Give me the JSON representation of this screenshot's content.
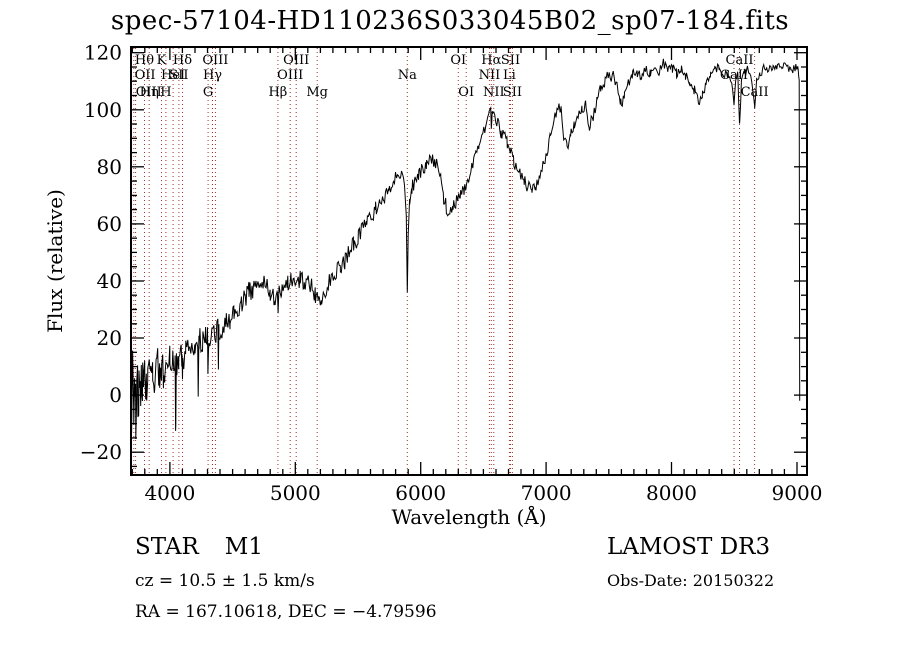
{
  "title": "spec-57104-HD110236S033045B02_sp07-184.fits",
  "annotations": {
    "class_label": "STAR",
    "subclass_label": "M1",
    "cz_text": "cz = 10.5 ± 1.5 km/s",
    "radec_text": "RA = 167.10618, DEC =  −4.79596",
    "survey_text": "LAMOST DR3",
    "obsdate_text": "Obs-Date: 20150322"
  },
  "chart_data": {
    "type": "line",
    "title": "spec-57104-HD110236S033045B02_sp07-184.fits",
    "xlabel": "Wavelength (Å)",
    "ylabel": "Flux (relative)",
    "xlim": [
      3690,
      9080
    ],
    "ylim": [
      -28,
      122
    ],
    "x_major_ticks": [
      4000,
      5000,
      6000,
      7000,
      8000,
      9000
    ],
    "x_minor_step": 100,
    "y_major_ticks": [
      -20,
      0,
      20,
      40,
      60,
      80,
      100,
      120
    ],
    "y_minor_step": 5,
    "grid": false,
    "background_color": "#ffffff",
    "spectrum_color": "#000000",
    "frame_color": "#000000",
    "marker_line_color": "#a03228",
    "marker_label_color": "#000000",
    "series": [
      {
        "name": "spectrum",
        "sample_step_angstrom": 8,
        "noise_seed": 987654321,
        "anchors": [
          [
            3695,
            -2
          ],
          [
            3703,
            6
          ],
          [
            3712,
            -8
          ],
          [
            3720,
            3
          ],
          [
            3728,
            -4
          ],
          [
            3736,
            6
          ],
          [
            3745,
            -2
          ],
          [
            3754,
            4
          ],
          [
            3763,
            -1
          ],
          [
            3772,
            6
          ],
          [
            3781,
            2
          ],
          [
            3790,
            1
          ],
          [
            3800,
            5
          ],
          [
            3812,
            3
          ],
          [
            3824,
            7
          ],
          [
            3835,
            4
          ],
          [
            3848,
            8
          ],
          [
            3862,
            5
          ],
          [
            3876,
            8
          ],
          [
            3890,
            6
          ],
          [
            3904,
            9
          ],
          [
            3918,
            7
          ],
          [
            3933,
            5
          ],
          [
            3948,
            9
          ],
          [
            3960,
            7
          ],
          [
            3968,
            6
          ],
          [
            3980,
            10
          ],
          [
            4000,
            11
          ],
          [
            4020,
            12
          ],
          [
            4042,
            13
          ],
          [
            4046,
            -12
          ],
          [
            4052,
            12
          ],
          [
            4070,
            12
          ],
          [
            4090,
            14
          ],
          [
            4097,
            14
          ],
          [
            4101,
            7
          ],
          [
            4107,
            14
          ],
          [
            4125,
            15
          ],
          [
            4150,
            16
          ],
          [
            4175,
            17
          ],
          [
            4200,
            18
          ],
          [
            4222,
            19
          ],
          [
            4226,
            3
          ],
          [
            4232,
            19
          ],
          [
            4260,
            19
          ],
          [
            4285,
            20
          ],
          [
            4300,
            20
          ],
          [
            4303,
            9
          ],
          [
            4308,
            20
          ],
          [
            4330,
            21
          ],
          [
            4355,
            22
          ],
          [
            4384,
            23
          ],
          [
            4387,
            12
          ],
          [
            4392,
            23
          ],
          [
            4420,
            24
          ],
          [
            4450,
            26
          ],
          [
            4480,
            27
          ],
          [
            4510,
            28
          ],
          [
            4540,
            30
          ],
          [
            4570,
            32
          ],
          [
            4600,
            34
          ],
          [
            4630,
            36
          ],
          [
            4660,
            37
          ],
          [
            4690,
            38
          ],
          [
            4720,
            39
          ],
          [
            4750,
            39
          ],
          [
            4775,
            38
          ],
          [
            4800,
            36
          ],
          [
            4830,
            34
          ],
          [
            4857,
            35
          ],
          [
            4861,
            30
          ],
          [
            4868,
            35
          ],
          [
            4890,
            36
          ],
          [
            4915,
            37
          ],
          [
            4940,
            39
          ],
          [
            4965,
            40
          ],
          [
            4990,
            40
          ],
          [
            5015,
            40
          ],
          [
            5040,
            41
          ],
          [
            5070,
            40
          ],
          [
            5100,
            39
          ],
          [
            5130,
            38
          ],
          [
            5160,
            35
          ],
          [
            5185,
            34
          ],
          [
            5210,
            34
          ],
          [
            5240,
            37
          ],
          [
            5270,
            40
          ],
          [
            5300,
            42
          ],
          [
            5330,
            44
          ],
          [
            5360,
            45
          ],
          [
            5395,
            47
          ],
          [
            5430,
            50
          ],
          [
            5465,
            53
          ],
          [
            5500,
            55
          ],
          [
            5535,
            58
          ],
          [
            5570,
            61
          ],
          [
            5605,
            63
          ],
          [
            5640,
            65
          ],
          [
            5675,
            67
          ],
          [
            5710,
            69
          ],
          [
            5745,
            72
          ],
          [
            5780,
            75
          ],
          [
            5815,
            77
          ],
          [
            5845,
            77
          ],
          [
            5868,
            75
          ],
          [
            5885,
            63
          ],
          [
            5893,
            36
          ],
          [
            5900,
            57
          ],
          [
            5912,
            69
          ],
          [
            5930,
            73
          ],
          [
            5955,
            75
          ],
          [
            5985,
            77
          ],
          [
            6015,
            79
          ],
          [
            6045,
            80
          ],
          [
            6075,
            82
          ],
          [
            6105,
            82
          ],
          [
            6135,
            80
          ],
          [
            6160,
            76
          ],
          [
            6180,
            70
          ],
          [
            6205,
            66
          ],
          [
            6230,
            64
          ],
          [
            6258,
            66
          ],
          [
            6285,
            68
          ],
          [
            6315,
            70
          ],
          [
            6345,
            72
          ],
          [
            6375,
            75
          ],
          [
            6405,
            79
          ],
          [
            6435,
            83
          ],
          [
            6465,
            87
          ],
          [
            6495,
            91
          ],
          [
            6520,
            95
          ],
          [
            6545,
            98
          ],
          [
            6558,
            99
          ],
          [
            6563,
            94
          ],
          [
            6570,
            98
          ],
          [
            6590,
            97
          ],
          [
            6615,
            95
          ],
          [
            6640,
            92
          ],
          [
            6665,
            91
          ],
          [
            6690,
            88
          ],
          [
            6715,
            85
          ],
          [
            6740,
            82
          ],
          [
            6765,
            80
          ],
          [
            6795,
            77
          ],
          [
            6825,
            75
          ],
          [
            6855,
            73
          ],
          [
            6885,
            72
          ],
          [
            6915,
            73
          ],
          [
            6945,
            76
          ],
          [
            6975,
            80
          ],
          [
            7005,
            85
          ],
          [
            7035,
            91
          ],
          [
            7065,
            97
          ],
          [
            7095,
            101
          ],
          [
            7115,
            101
          ],
          [
            7140,
            89
          ],
          [
            7165,
            87
          ],
          [
            7195,
            91
          ],
          [
            7225,
            95
          ],
          [
            7255,
            98
          ],
          [
            7285,
            100
          ],
          [
            7315,
            102
          ],
          [
            7345,
            95
          ],
          [
            7375,
            98
          ],
          [
            7405,
            103
          ],
          [
            7435,
            107
          ],
          [
            7465,
            110
          ],
          [
            7500,
            112
          ],
          [
            7535,
            112
          ],
          [
            7565,
            108
          ],
          [
            7595,
            102
          ],
          [
            7625,
            105
          ],
          [
            7655,
            109
          ],
          [
            7690,
            112
          ],
          [
            7725,
            113
          ],
          [
            7760,
            112
          ],
          [
            7795,
            114
          ],
          [
            7830,
            113
          ],
          [
            7865,
            115
          ],
          [
            7900,
            114
          ],
          [
            7935,
            116
          ],
          [
            7970,
            114
          ],
          [
            8005,
            115
          ],
          [
            8040,
            113
          ],
          [
            8075,
            114
          ],
          [
            8110,
            112
          ],
          [
            8145,
            110
          ],
          [
            8180,
            107
          ],
          [
            8215,
            103
          ],
          [
            8245,
            105
          ],
          [
            8275,
            109
          ],
          [
            8310,
            112
          ],
          [
            8345,
            114
          ],
          [
            8380,
            115
          ],
          [
            8415,
            113
          ],
          [
            8450,
            112
          ],
          [
            8480,
            110
          ],
          [
            8498,
            102
          ],
          [
            8512,
            111
          ],
          [
            8528,
            112
          ],
          [
            8542,
            95
          ],
          [
            8558,
            111
          ],
          [
            8580,
            113
          ],
          [
            8605,
            114
          ],
          [
            8635,
            111
          ],
          [
            8662,
            100
          ],
          [
            8680,
            111
          ],
          [
            8705,
            113
          ],
          [
            8740,
            115
          ],
          [
            8775,
            114
          ],
          [
            8810,
            115
          ],
          [
            8845,
            116
          ],
          [
            8880,
            115
          ],
          [
            8915,
            116
          ],
          [
            8950,
            114
          ],
          [
            8985,
            115
          ],
          [
            9010,
            114
          ],
          [
            9018,
            110
          ],
          [
            9022,
            -2
          ]
        ],
        "noise_anchors": [
          [
            3695,
            13
          ],
          [
            3760,
            12
          ],
          [
            3830,
            10
          ],
          [
            3900,
            8
          ],
          [
            3970,
            7
          ],
          [
            4050,
            6
          ],
          [
            4150,
            5
          ],
          [
            4300,
            4.5
          ],
          [
            4500,
            4
          ],
          [
            4700,
            3.5
          ],
          [
            4900,
            3.2
          ],
          [
            5100,
            3
          ],
          [
            5400,
            3
          ],
          [
            5700,
            2.8
          ],
          [
            5880,
            1.5
          ],
          [
            5910,
            2.5
          ],
          [
            6100,
            2.6
          ],
          [
            6400,
            2.4
          ],
          [
            6540,
            1.6
          ],
          [
            6600,
            2.2
          ],
          [
            7000,
            2.2
          ],
          [
            7300,
            2.4
          ],
          [
            7600,
            2
          ],
          [
            8000,
            2
          ],
          [
            8200,
            1.8
          ],
          [
            8530,
            1.2
          ],
          [
            8700,
            1.8
          ],
          [
            9000,
            1.6
          ],
          [
            9022,
            0.4
          ]
        ]
      }
    ],
    "spectral_lines": [
      {
        "label": "OIII",
        "wavelength": 3712,
        "row": 3
      },
      {
        "label": "OII",
        "wavelength": 3727,
        "row": 2
      },
      {
        "label": "Hθ",
        "wavelength": 3798,
        "row": 1
      },
      {
        "label": "Hη",
        "wavelength": 3835,
        "row": 3
      },
      {
        "label": "K",
        "wavelength": 3933,
        "row": 1
      },
      {
        "label": "H",
        "wavelength": 3968,
        "row": 3
      },
      {
        "label": "HeI",
        "wavelength": 4026,
        "row": 2
      },
      {
        "label": "SII",
        "wavelength": 4072,
        "row": 2
      },
      {
        "label": "Hδ",
        "wavelength": 4101,
        "row": 1
      },
      {
        "label": "G",
        "wavelength": 4305,
        "row": 3
      },
      {
        "label": "Hγ",
        "wavelength": 4340,
        "row": 2
      },
      {
        "label": "OIII",
        "wavelength": 4363,
        "row": 1
      },
      {
        "label": "Hβ",
        "wavelength": 4861,
        "row": 3
      },
      {
        "label": "OIII",
        "wavelength": 4959,
        "row": 2
      },
      {
        "label": "OIII",
        "wavelength": 5007,
        "row": 1
      },
      {
        "label": "Mg",
        "wavelength": 5175,
        "row": 3
      },
      {
        "label": "Na",
        "wavelength": 5893,
        "row": 2
      },
      {
        "label": "OI",
        "wavelength": 6300,
        "row": 1
      },
      {
        "label": "OI",
        "wavelength": 6363,
        "row": 3
      },
      {
        "label": "NII",
        "wavelength": 6548,
        "row": 2
      },
      {
        "label": "Hα",
        "wavelength": 6563,
        "row": 1
      },
      {
        "label": "NII",
        "wavelength": 6583,
        "row": 3
      },
      {
        "label": "Li",
        "wavelength": 6707,
        "row": 2
      },
      {
        "label": "SII",
        "wavelength": 6716,
        "row": 1
      },
      {
        "label": "SII",
        "wavelength": 6731,
        "row": 3
      },
      {
        "label": "CaII",
        "wavelength": 8498,
        "row": 2
      },
      {
        "label": "CaII",
        "wavelength": 8542,
        "row": 1
      },
      {
        "label": "CaII",
        "wavelength": 8662,
        "row": 3
      }
    ]
  }
}
